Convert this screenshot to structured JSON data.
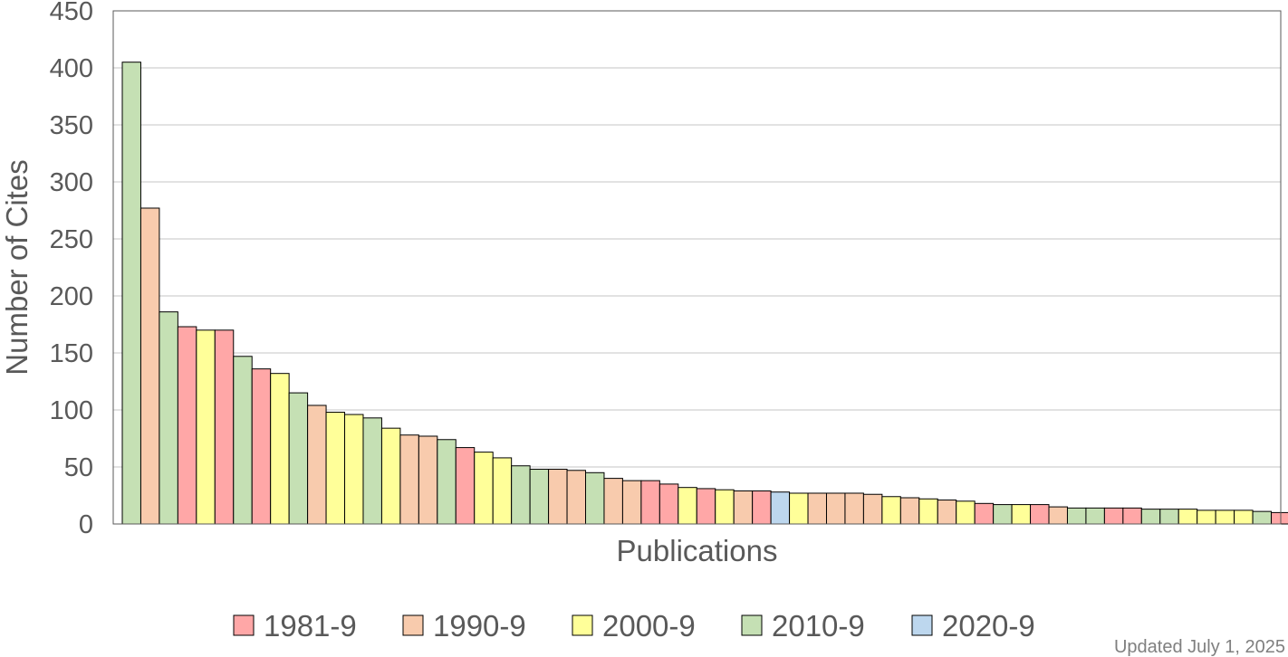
{
  "chart_data": {
    "type": "bar",
    "title": "",
    "xlabel": "Publications",
    "ylabel": "Number of Cites",
    "ylim": [
      0,
      450
    ],
    "yticks": [
      0,
      50,
      100,
      150,
      200,
      250,
      300,
      350,
      400,
      450
    ],
    "grid": true,
    "legend_position": "bottom",
    "legend": [
      {
        "label": "1981-9",
        "color": "#ffa7a7"
      },
      {
        "label": "1990-9",
        "color": "#f8cbad"
      },
      {
        "label": "2000-9",
        "color": "#ffff99"
      },
      {
        "label": "2010-9",
        "color": "#c5e0b4"
      },
      {
        "label": "2020-9",
        "color": "#bdd7ee"
      }
    ],
    "series": [
      {
        "values": [
          405,
          277,
          186,
          173,
          170,
          170,
          147,
          136,
          132,
          115,
          104,
          98,
          96,
          93,
          84,
          78,
          77,
          74,
          67,
          63,
          58,
          51,
          48,
          48,
          47,
          45,
          40,
          38,
          38,
          35,
          32,
          31,
          30,
          29,
          29,
          28,
          27,
          27,
          27,
          27,
          26,
          24,
          23,
          22,
          21,
          20,
          18,
          17,
          17,
          17,
          15,
          14,
          14,
          14,
          14,
          13,
          13,
          13,
          12,
          12,
          12,
          11,
          10
        ],
        "decades": [
          "2010-9",
          "1990-9",
          "2010-9",
          "1981-9",
          "2000-9",
          "1981-9",
          "2010-9",
          "1981-9",
          "2000-9",
          "2010-9",
          "1990-9",
          "2000-9",
          "2000-9",
          "2010-9",
          "2000-9",
          "1990-9",
          "1990-9",
          "2010-9",
          "1981-9",
          "2000-9",
          "2000-9",
          "2010-9",
          "2010-9",
          "1990-9",
          "1990-9",
          "2010-9",
          "1990-9",
          "1990-9",
          "1981-9",
          "1981-9",
          "2000-9",
          "1981-9",
          "2000-9",
          "1990-9",
          "1981-9",
          "2020-9",
          "2000-9",
          "1990-9",
          "1990-9",
          "1990-9",
          "1990-9",
          "2000-9",
          "1990-9",
          "2000-9",
          "1990-9",
          "2000-9",
          "1981-9",
          "2010-9",
          "2000-9",
          "1981-9",
          "1990-9",
          "2010-9",
          "2010-9",
          "1981-9",
          "1981-9",
          "2010-9",
          "2010-9",
          "2000-9",
          "2000-9",
          "2000-9",
          "2000-9",
          "2010-9",
          "1981-9"
        ]
      }
    ],
    "note": "Updated July 1, 2025"
  }
}
